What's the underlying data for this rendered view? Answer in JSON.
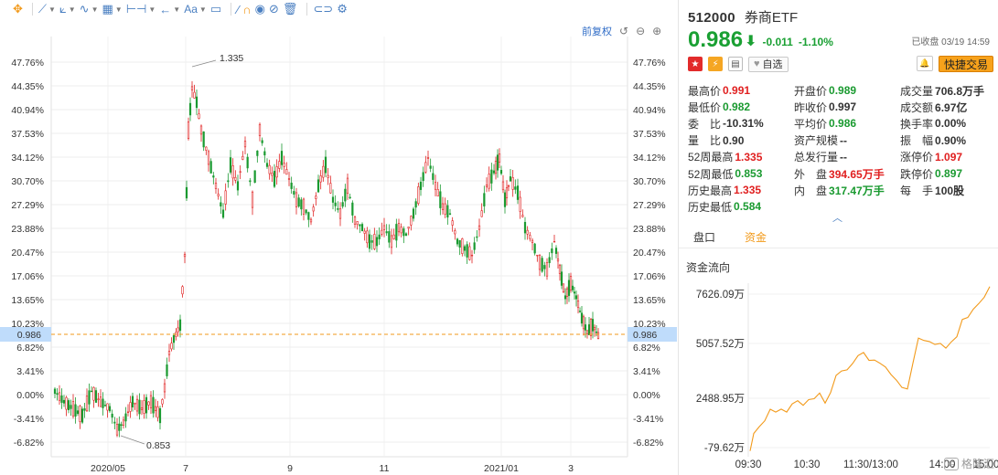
{
  "toolbar": {
    "icons": [
      "crosshair-icon",
      "line-tool-icon",
      "channel-tool-icon",
      "wave-tool-icon",
      "calc-tool-icon",
      "range-tool-icon",
      "arrow-tool-icon",
      "text-tool-icon",
      "comment-icon",
      "ruler-icon",
      "magnet-icon",
      "eye-icon",
      "hide-icon",
      "trash-icon",
      "link-icon",
      "settings-icon"
    ],
    "text_tool_label": "Aa"
  },
  "chart_header": {
    "adjust_label": "前复权"
  },
  "chart_data": {
    "type": "candlestick",
    "y_ticks_pct": [
      "47.76%",
      "44.35%",
      "40.94%",
      "37.53%",
      "34.12%",
      "30.70%",
      "27.29%",
      "23.88%",
      "20.47%",
      "17.06%",
      "13.65%",
      "10.23%",
      "6.82%",
      "3.41%",
      "0.00%",
      "-3.41%",
      "-6.82%"
    ],
    "x_ticks": [
      "2020/05",
      "7",
      "9",
      "11",
      "2021/01",
      "3"
    ],
    "current_price_label": "0.986",
    "annotations": {
      "high": "1.335",
      "low": "0.853"
    }
  },
  "stock": {
    "code": "512000",
    "name": "券商ETF",
    "price": "0.986",
    "arrow": "⬇",
    "change": "-0.011",
    "change_pct": "-1.10%",
    "status": "已收盘 03/19 14:59"
  },
  "tags": {
    "cn_flag": "🇨🇳",
    "fav_label": "自选",
    "trade_label": "快捷交易"
  },
  "quote": {
    "col1": [
      {
        "label": "最高价",
        "value": "0.991",
        "color": "red"
      },
      {
        "label": "最低价",
        "value": "0.982",
        "color": "green"
      },
      {
        "label": "委　比",
        "value": "-10.31%",
        "color": "dark"
      },
      {
        "label": "量　比",
        "value": "0.90",
        "color": "dark"
      },
      {
        "label": "52周最高",
        "value": "1.335",
        "color": "red"
      },
      {
        "label": "52周最低",
        "value": "0.853",
        "color": "green"
      },
      {
        "label": "历史最高",
        "value": "1.335",
        "color": "red"
      },
      {
        "label": "历史最低",
        "value": "0.584",
        "color": "green"
      }
    ],
    "col2": [
      {
        "label": "开盘价",
        "value": "0.989",
        "color": "green"
      },
      {
        "label": "昨收价",
        "value": "0.997",
        "color": "dark"
      },
      {
        "label": "平均价",
        "value": "0.986",
        "color": "green"
      },
      {
        "label": "资产规模",
        "value": "--",
        "color": "dark"
      },
      {
        "label": "总发行量",
        "value": "--",
        "color": "dark"
      },
      {
        "label": "外　盘",
        "value": "394.65万手",
        "color": "red"
      },
      {
        "label": "内　盘",
        "value": "317.47万手",
        "color": "green"
      }
    ],
    "col3": [
      {
        "label": "成交量",
        "value": "706.8万手",
        "color": "dark"
      },
      {
        "label": "成交额",
        "value": "6.97亿",
        "color": "dark"
      },
      {
        "label": "换手率",
        "value": "0.00%",
        "color": "dark"
      },
      {
        "label": "振　幅",
        "value": "0.90%",
        "color": "dark"
      },
      {
        "label": "涨停价",
        "value": "1.097",
        "color": "red"
      },
      {
        "label": "跌停价",
        "value": "0.897",
        "color": "green"
      },
      {
        "label": "每　手",
        "value": "100股",
        "color": "dark"
      }
    ]
  },
  "tabs": [
    {
      "label": "盘口",
      "active": false
    },
    {
      "label": "资金",
      "active": true
    }
  ],
  "flow": {
    "title": "资金流向",
    "y_labels": [
      "7626.09万",
      "5057.52万",
      "2488.95万",
      "-79.62万"
    ],
    "x_labels": [
      "09:30",
      "10:30",
      "11:30/13:00",
      "14:00",
      "15:00"
    ]
  },
  "watermark": {
    "text": "格隆汇"
  }
}
